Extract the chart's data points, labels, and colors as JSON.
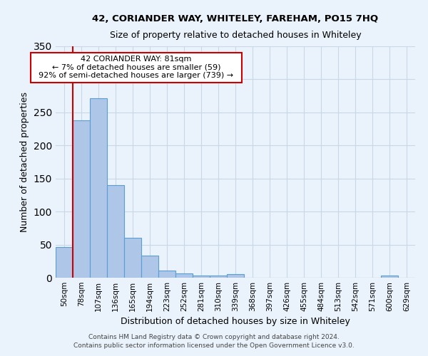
{
  "title1": "42, CORIANDER WAY, WHITELEY, FAREHAM, PO15 7HQ",
  "title2": "Size of property relative to detached houses in Whiteley",
  "xlabel": "Distribution of detached houses by size in Whiteley",
  "ylabel": "Number of detached properties",
  "footnote1": "Contains HM Land Registry data © Crown copyright and database right 2024.",
  "footnote2": "Contains public sector information licensed under the Open Government Licence v3.0.",
  "bin_labels": [
    "50sqm",
    "78sqm",
    "107sqm",
    "136sqm",
    "165sqm",
    "194sqm",
    "223sqm",
    "252sqm",
    "281sqm",
    "310sqm",
    "339sqm",
    "368sqm",
    "397sqm",
    "426sqm",
    "455sqm",
    "484sqm",
    "513sqm",
    "542sqm",
    "571sqm",
    "600sqm",
    "629sqm"
  ],
  "bar_heights": [
    46,
    238,
    271,
    140,
    60,
    33,
    11,
    7,
    3,
    3,
    5,
    0,
    0,
    0,
    0,
    0,
    0,
    0,
    0,
    3,
    0
  ],
  "bar_color": "#aec6e8",
  "bar_edge_color": "#5a9fd4",
  "grid_color": "#c8d8e8",
  "bg_color": "#eaf2fb",
  "annotation_box_color": "#ffffff",
  "annotation_border_color": "#cc0000",
  "red_line_bin": 1,
  "annotation_text_line1": "42 CORIANDER WAY: 81sqm",
  "annotation_text_line2": "← 7% of detached houses are smaller (59)",
  "annotation_text_line3": "92% of semi-detached houses are larger (739) →",
  "ylim": [
    0,
    350
  ],
  "yticks": [
    0,
    50,
    100,
    150,
    200,
    250,
    300,
    350
  ]
}
